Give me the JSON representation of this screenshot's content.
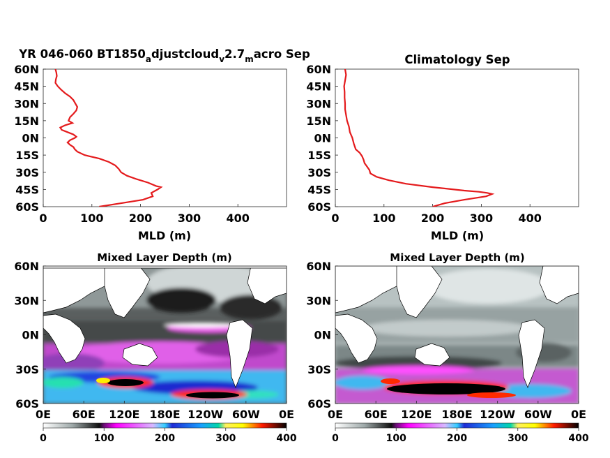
{
  "chart_data": [
    {
      "type": "line",
      "title": "YR 046-060 BT1850_adjustcloud_v2.7_macro Sep",
      "title_parts": [
        "YR 046-060 BT1850",
        "a",
        "djustcloud",
        "v",
        "2.7",
        "m",
        "acro Sep"
      ],
      "xlabel": "MLD (m)",
      "ylabel": "",
      "xlim": [
        0,
        500
      ],
      "ylim": [
        -60,
        60
      ],
      "x_ticks": [
        "0",
        "100",
        "200",
        "300",
        "400"
      ],
      "y_ticks": [
        "60N",
        "45N",
        "30N",
        "15N",
        "0N",
        "15S",
        "30S",
        "45S",
        "60S"
      ],
      "line_color": "#e41a1c",
      "series": [
        {
          "lat": [
            60,
            57,
            54,
            51,
            48,
            45,
            42,
            39,
            36,
            33,
            30,
            27,
            24,
            21,
            18,
            15,
            13,
            11,
            9,
            7,
            5,
            3,
            1,
            0,
            -2,
            -4,
            -6,
            -8,
            -10,
            -12,
            -15,
            -18,
            -21,
            -24,
            -27,
            -30,
            -33,
            -36,
            -39,
            -42,
            -43,
            -45,
            -48,
            -51,
            -54,
            -57,
            -60
          ],
          "x": [
            25,
            27,
            28,
            26,
            25,
            30,
            37,
            45,
            55,
            62,
            66,
            70,
            68,
            62,
            55,
            52,
            60,
            45,
            35,
            38,
            50,
            62,
            68,
            65,
            55,
            50,
            55,
            62,
            65,
            70,
            85,
            115,
            135,
            148,
            155,
            160,
            172,
            192,
            215,
            232,
            242,
            235,
            222,
            225,
            205,
            160,
            115
          ]
        }
      ]
    },
    {
      "type": "line",
      "title": "Climatology Sep",
      "xlabel": "MLD (m)",
      "ylabel": "",
      "xlim": [
        0,
        500
      ],
      "ylim": [
        -60,
        60
      ],
      "x_ticks": [
        "0",
        "100",
        "200",
        "300",
        "400"
      ],
      "y_ticks": [
        "60N",
        "45N",
        "30N",
        "15N",
        "0N",
        "15S",
        "30S",
        "45S",
        "60S"
      ],
      "line_color": "#e41a1c",
      "series": [
        {
          "lat": [
            60,
            55,
            50,
            45,
            40,
            35,
            30,
            25,
            20,
            15,
            10,
            5,
            0,
            -5,
            -10,
            -13,
            -16,
            -19,
            -22,
            -25,
            -28,
            -31,
            -34,
            -37,
            -40,
            -43,
            -46,
            -47,
            -48,
            -49,
            -51,
            -54,
            -57,
            -60
          ],
          "x": [
            20,
            22,
            20,
            18,
            19,
            19,
            20,
            20,
            22,
            24,
            28,
            30,
            35,
            38,
            42,
            50,
            55,
            58,
            60,
            65,
            70,
            72,
            85,
            110,
            145,
            200,
            265,
            295,
            312,
            322,
            310,
            265,
            225,
            200
          ]
        }
      ]
    },
    {
      "type": "heatmap",
      "title": "Mixed Layer Depth (m)",
      "x_ticks": [
        "0E",
        "60E",
        "120E",
        "180E",
        "120W",
        "60W",
        "0E"
      ],
      "y_ticks": [
        "60N",
        "30N",
        "0N",
        "30S",
        "60S"
      ],
      "xlim": [
        0,
        360
      ],
      "ylim": [
        -60,
        60
      ],
      "colorbar": {
        "ticks": [
          "0",
          "100",
          "200",
          "300",
          "400"
        ],
        "range": [
          0,
          400
        ]
      }
    },
    {
      "type": "heatmap",
      "title": "Mixed Layer Depth (m)",
      "x_ticks": [
        "0E",
        "60E",
        "120E",
        "180E",
        "120W",
        "60W",
        "0E"
      ],
      "y_ticks": [
        "60N",
        "30N",
        "0N",
        "30S",
        "60S"
      ],
      "xlim": [
        0,
        360
      ],
      "ylim": [
        -60,
        60
      ],
      "colorbar": {
        "ticks": [
          "0",
          "100",
          "200",
          "300",
          "400"
        ],
        "range": [
          0,
          400
        ]
      }
    }
  ],
  "colors": {
    "line": "#e41a1c",
    "land": "#ffffff",
    "cmap": [
      "#ffffff",
      "#9ea9a9",
      "#101010",
      "#6a0d76",
      "#ff00ff",
      "#33cfff",
      "#1f2bd6",
      "#00d7a8",
      "#ffff00",
      "#ff1a00",
      "#000000"
    ]
  }
}
